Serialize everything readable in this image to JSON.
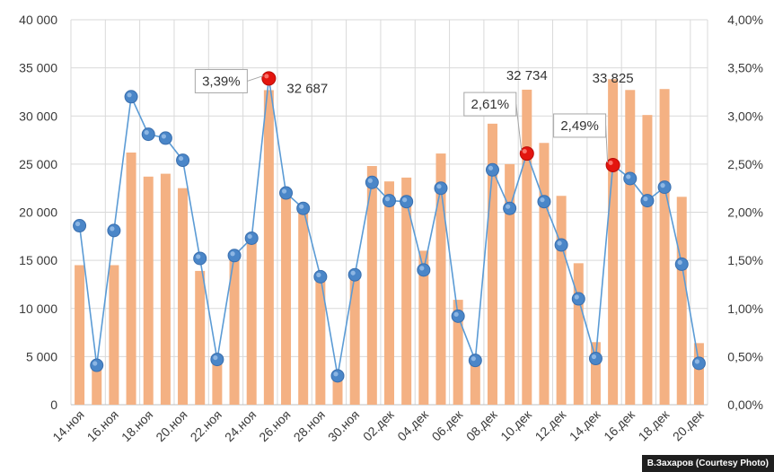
{
  "chart_data": {
    "type": "bar+line",
    "categories": [
      "14.ноя",
      "15.ноя",
      "16.ноя",
      "17.ноя",
      "18.ноя",
      "19.ноя",
      "20.ноя",
      "21.ноя",
      "22.ноя",
      "23.ноя",
      "24.ноя",
      "25.ноя",
      "26.ноя",
      "27.ноя",
      "28.ноя",
      "29.ноя",
      "30.ноя",
      "01.дек",
      "02.дек",
      "03.дек",
      "04.дек",
      "05.дек",
      "06.дек",
      "07.дек",
      "08.дек",
      "09.дек",
      "10.дек",
      "11.дек",
      "12.дек",
      "13.дек",
      "14.дек",
      "15.дек",
      "16.дек",
      "17.дек",
      "18.дек",
      "19.дек",
      "20.дек"
    ],
    "x_tick_labels": [
      "14.ноя",
      "16.ноя",
      "18.ноя",
      "20.ноя",
      "22.ноя",
      "24.ноя",
      "26.ноя",
      "28.ноя",
      "30.ноя",
      "02.дек",
      "04.дек",
      "06.дек",
      "08.дек",
      "10.дек",
      "12.дек",
      "14.дек",
      "16.дек",
      "18.дек",
      "20.дек"
    ],
    "series": [
      {
        "name": "bars",
        "axis": "left",
        "color": "#F4B183",
        "values": [
          14500,
          4000,
          14500,
          26200,
          23700,
          24000,
          22500,
          13900,
          4800,
          15300,
          17000,
          32687,
          21900,
          20000,
          13000,
          3000,
          13000,
          24800,
          23200,
          23600,
          16000,
          26100,
          10900,
          4500,
          29200,
          25000,
          32734,
          27200,
          21700,
          14700,
          6500,
          33825,
          32700,
          30100,
          32800,
          21600,
          6400
        ]
      },
      {
        "name": "line",
        "axis": "right",
        "color": "#5B9BD5",
        "marker_color": "#4A86C8",
        "values": [
          1.86,
          0.41,
          1.81,
          3.2,
          2.81,
          2.77,
          2.54,
          1.52,
          0.47,
          1.55,
          1.73,
          3.39,
          2.2,
          2.04,
          1.33,
          0.3,
          1.35,
          2.31,
          2.12,
          2.11,
          1.4,
          2.25,
          0.92,
          0.46,
          2.44,
          2.04,
          2.61,
          2.11,
          1.66,
          1.1,
          0.48,
          2.49,
          2.35,
          2.12,
          2.26,
          1.46,
          0.43
        ]
      }
    ],
    "y_left": {
      "min": 0,
      "max": 40000,
      "step": 5000,
      "tick_labels": [
        "0",
        "5 000",
        "10 000",
        "15 000",
        "20 000",
        "25 000",
        "30 000",
        "35 000",
        "40 000"
      ]
    },
    "y_right": {
      "min": 0,
      "max": 4.0,
      "step": 0.5,
      "tick_labels": [
        "0,00%",
        "0,50%",
        "1,00%",
        "1,50%",
        "2,00%",
        "2,50%",
        "3,00%",
        "3,50%",
        "4,00%"
      ]
    },
    "grid": true,
    "highlight_color": "#E3150F",
    "annotations": [
      {
        "index": 11,
        "pct_label": "3,39%",
        "value_label": "32 687"
      },
      {
        "index": 26,
        "pct_label": "2,61%",
        "value_label": "32 734"
      },
      {
        "index": 31,
        "pct_label": "2,49%",
        "value_label": "33 825"
      }
    ]
  },
  "credit": "В.Захаров (Courtesy Photo)"
}
